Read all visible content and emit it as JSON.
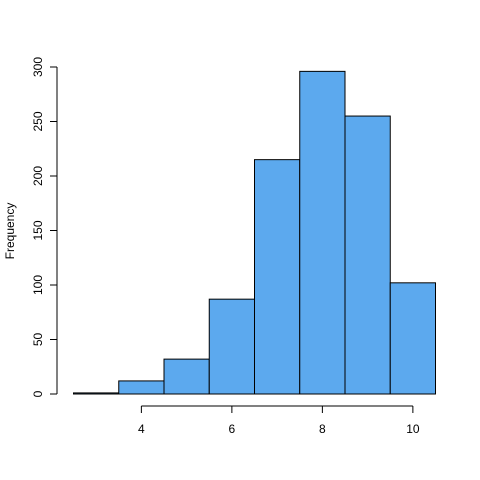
{
  "chart_data": {
    "type": "bar",
    "title": "",
    "xlabel": "",
    "ylabel": "Frequency",
    "bins": [
      {
        "start": 2.5,
        "end": 3.5,
        "count": 1
      },
      {
        "start": 3.5,
        "end": 4.5,
        "count": 12
      },
      {
        "start": 4.5,
        "end": 5.5,
        "count": 32
      },
      {
        "start": 5.5,
        "end": 6.5,
        "count": 87
      },
      {
        "start": 6.5,
        "end": 7.5,
        "count": 215
      },
      {
        "start": 7.5,
        "end": 8.5,
        "count": 296
      },
      {
        "start": 8.5,
        "end": 9.5,
        "count": 255
      },
      {
        "start": 9.5,
        "end": 10.5,
        "count": 102
      }
    ],
    "xlim": [
      2.5,
      10.5
    ],
    "ylim": [
      0,
      300
    ],
    "x_ticks": [
      4,
      6,
      8,
      10
    ],
    "y_ticks": [
      0,
      50,
      100,
      150,
      200,
      250,
      300
    ],
    "bar_color": "#5ca9ee",
    "bar_edge_color": "#000000",
    "grid": false,
    "legend": "none"
  }
}
